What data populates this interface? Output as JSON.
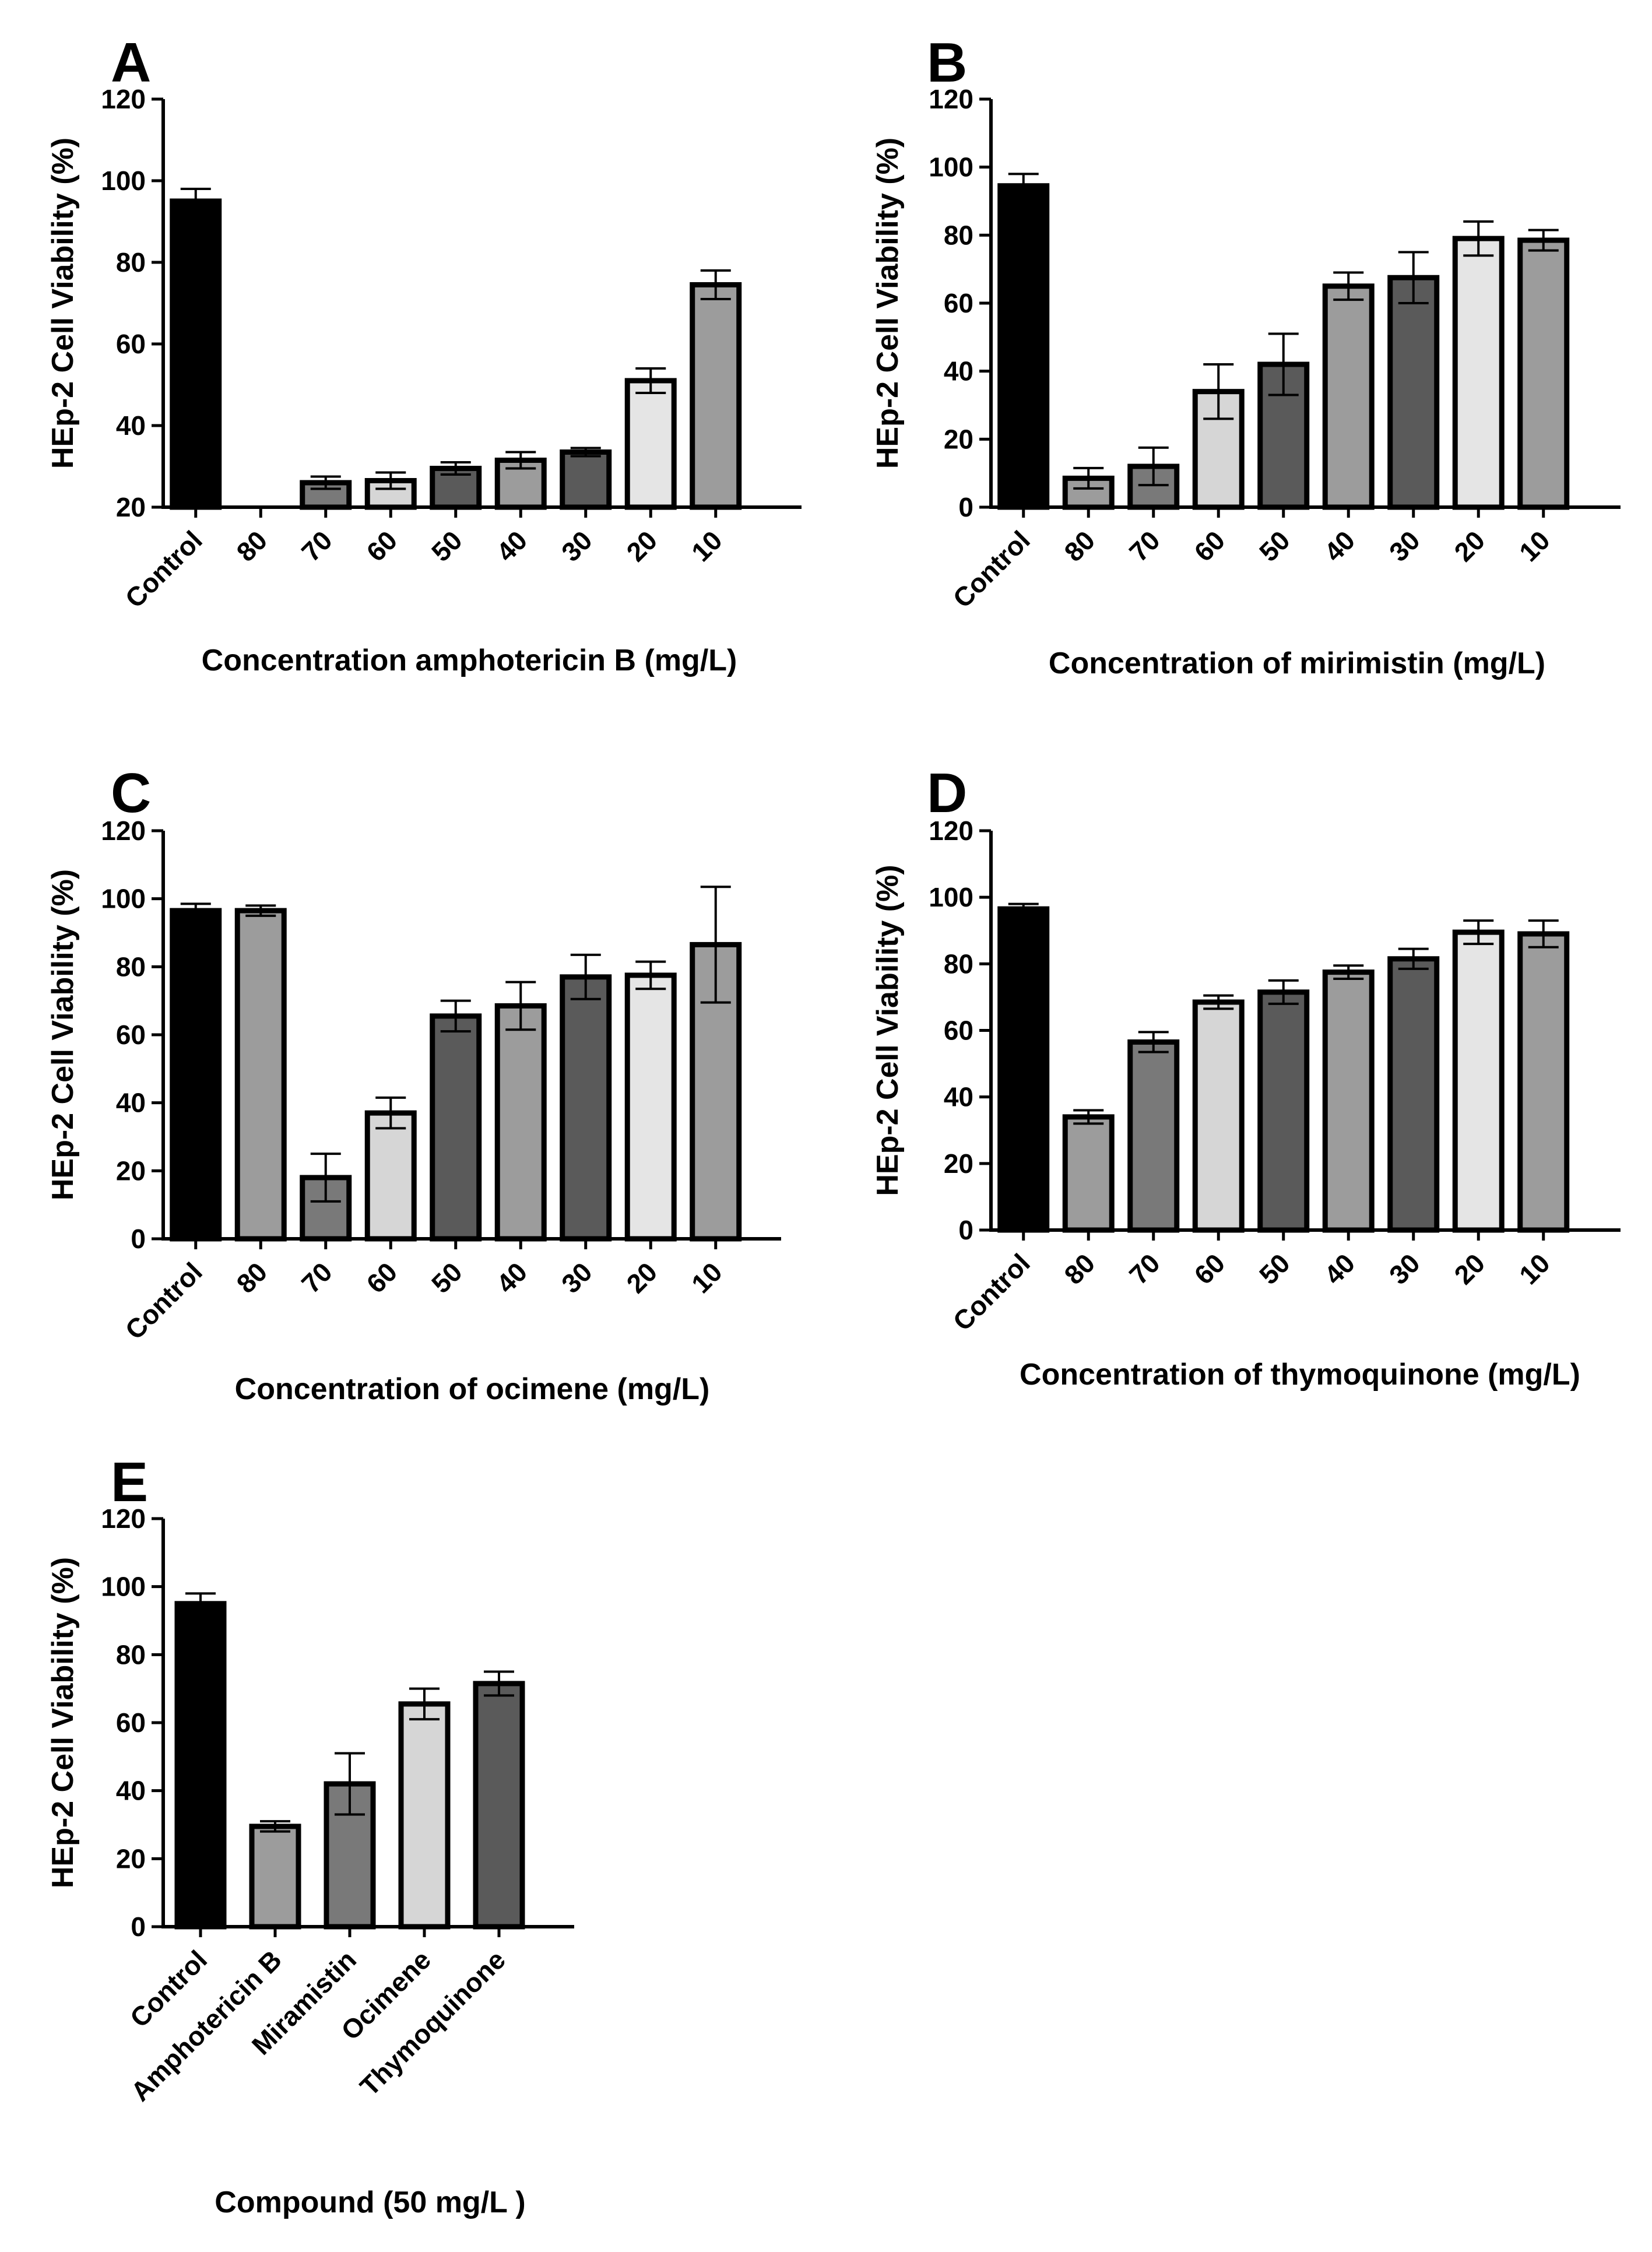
{
  "chart_data": [
    {
      "panel": "A",
      "type": "bar",
      "xlabel": "Concentration amphotericin B (mg/L)",
      "ylabel": "HEp-2 Cell Viability (%)",
      "ylim": [
        20,
        120
      ],
      "yticks": [
        20,
        40,
        60,
        80,
        100,
        120
      ],
      "categories": [
        "Control",
        "80",
        "70",
        "60",
        "50",
        "40",
        "30",
        "20",
        "10"
      ],
      "values": [
        95,
        20,
        26,
        26.5,
        29.5,
        31.5,
        33.5,
        51,
        74.5
      ],
      "errors": [
        3,
        0,
        1.5,
        2,
        1.5,
        2,
        1,
        3,
        3.5
      ],
      "colors": [
        "#000000",
        "#9c9c9c",
        "#797979",
        "#d6d6d6",
        "#5a5a5a",
        "#9c9c9c",
        "#5a5a5a",
        "#e5e5e5",
        "#9c9c9c"
      ]
    },
    {
      "panel": "B",
      "type": "bar",
      "xlabel": "Concentration of mirimistin (mg/L)",
      "ylabel": "HEp-2 Cell Viability (%)",
      "ylim": [
        0,
        120
      ],
      "yticks": [
        0,
        20,
        40,
        60,
        80,
        100,
        120
      ],
      "categories": [
        "Control",
        "80",
        "70",
        "60",
        "50",
        "40",
        "30",
        "20",
        "10"
      ],
      "values": [
        94.5,
        8.5,
        12,
        34,
        42,
        65,
        67.5,
        79,
        78.5
      ],
      "errors": [
        3.5,
        3,
        5.5,
        8,
        9,
        4,
        7.5,
        5,
        3
      ],
      "colors": [
        "#000000",
        "#9c9c9c",
        "#797979",
        "#d6d6d6",
        "#5a5a5a",
        "#9c9c9c",
        "#5a5a5a",
        "#e5e5e5",
        "#9c9c9c"
      ]
    },
    {
      "panel": "C",
      "type": "bar",
      "xlabel": "Concentration of ocimene (mg/L)",
      "ylabel": "HEp-2 Cell Viability (%)",
      "ylim": [
        0,
        120
      ],
      "yticks": [
        0,
        20,
        40,
        60,
        80,
        100,
        120
      ],
      "categories": [
        "Control",
        "80",
        "70",
        "60",
        "50",
        "40",
        "30",
        "20",
        "10"
      ],
      "values": [
        96.5,
        96.5,
        18,
        37,
        65.5,
        68.5,
        77,
        77.5,
        86.5
      ],
      "errors": [
        2,
        1.5,
        7,
        4.5,
        4.5,
        7,
        6.5,
        4,
        17
      ],
      "colors": [
        "#000000",
        "#9c9c9c",
        "#797979",
        "#d6d6d6",
        "#5a5a5a",
        "#9c9c9c",
        "#5a5a5a",
        "#e5e5e5",
        "#9c9c9c"
      ]
    },
    {
      "panel": "D",
      "type": "bar",
      "xlabel": "Concentration of thymoquinone (mg/L)",
      "ylabel": "HEp-2 Cell Viability (%)",
      "ylim": [
        0,
        120
      ],
      "yticks": [
        0,
        20,
        40,
        60,
        80,
        100,
        120
      ],
      "categories": [
        "Control",
        "80",
        "70",
        "60",
        "50",
        "40",
        "30",
        "20",
        "10"
      ],
      "values": [
        96.5,
        34,
        56.5,
        68.5,
        71.5,
        77.5,
        81.5,
        89.5,
        89
      ],
      "errors": [
        1.5,
        2,
        3,
        2,
        3.5,
        2,
        3,
        3.5,
        4
      ],
      "colors": [
        "#000000",
        "#9c9c9c",
        "#797979",
        "#d6d6d6",
        "#5a5a5a",
        "#9c9c9c",
        "#5a5a5a",
        "#e5e5e5",
        "#9c9c9c"
      ]
    },
    {
      "panel": "E",
      "type": "bar",
      "xlabel": "Compound (50 mg/L )",
      "ylabel": "HEp-2 Cell Viability (%)",
      "ylim": [
        0,
        120
      ],
      "yticks": [
        0,
        20,
        40,
        60,
        80,
        100,
        120
      ],
      "categories": [
        "Control",
        "Amphotericin B",
        "Miramistin",
        "Ocimene",
        "Thymoquinone"
      ],
      "values": [
        95,
        29.5,
        42,
        65.5,
        71.5
      ],
      "errors": [
        3,
        1.5,
        9,
        4.5,
        3.5
      ],
      "colors": [
        "#000000",
        "#9c9c9c",
        "#797979",
        "#d6d6d6",
        "#5a5a5a"
      ]
    }
  ]
}
